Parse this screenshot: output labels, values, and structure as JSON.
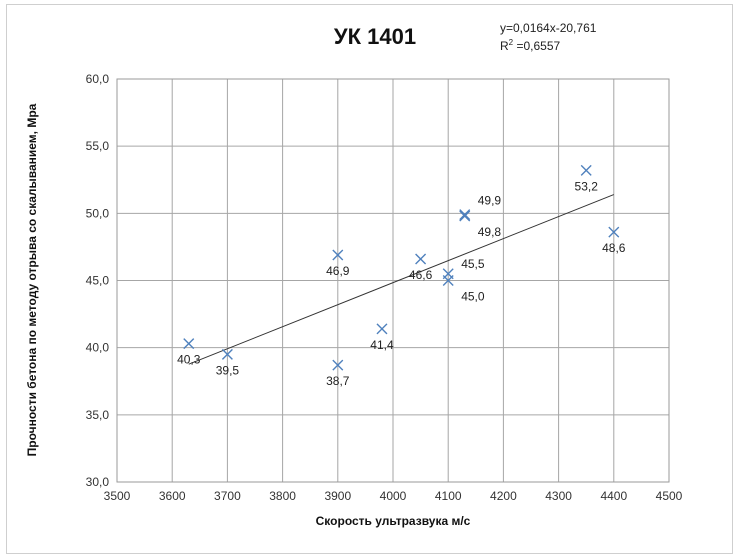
{
  "chart_data": {
    "type": "scatter",
    "title": "УК 1401",
    "equation": "y=0,0164x-20,761",
    "r2_prefix": "R",
    "r2_sup": "2",
    "r2_value": " =0,6557",
    "xlabel": "Скорость ультразвука м/с",
    "ylabel": "Прочности бетона по методу отрыва со скалыванием, Мра",
    "xlim": [
      3500,
      4500
    ],
    "ylim": [
      30,
      60
    ],
    "xticks": [
      3500,
      3600,
      3700,
      3800,
      3900,
      4000,
      4100,
      4200,
      4300,
      4400,
      4500
    ],
    "yticks": [
      "30,0",
      "35,0",
      "40,0",
      "45,0",
      "50,0",
      "55,0",
      "60,0"
    ],
    "grid": true,
    "marker": "x",
    "marker_color": "#4f81bd",
    "trendline": {
      "slope": 0.0164,
      "intercept": -20.761,
      "x_range": [
        3630,
        4400
      ],
      "color": "#333333"
    },
    "points": [
      {
        "x": 3630,
        "y": 40.3,
        "label": "40,3",
        "lpos": "below"
      },
      {
        "x": 3700,
        "y": 39.5,
        "label": "39,5",
        "lpos": "below"
      },
      {
        "x": 3900,
        "y": 46.9,
        "label": "46,9",
        "lpos": "below"
      },
      {
        "x": 3900,
        "y": 38.7,
        "label": "38,7",
        "lpos": "below"
      },
      {
        "x": 3980,
        "y": 41.4,
        "label": "41,4",
        "lpos": "below"
      },
      {
        "x": 4050,
        "y": 46.6,
        "label": "46,6",
        "lpos": "below"
      },
      {
        "x": 4100,
        "y": 45.5,
        "label": "45,5",
        "lpos": "right"
      },
      {
        "x": 4100,
        "y": 45.0,
        "label": "45,0",
        "lpos": "belowright"
      },
      {
        "x": 4130,
        "y": 49.9,
        "label": "49,9",
        "lpos": "aboveright"
      },
      {
        "x": 4130,
        "y": 49.8,
        "label": "49,8",
        "lpos": "belowright"
      },
      {
        "x": 4350,
        "y": 53.2,
        "label": "53,2",
        "lpos": "below"
      },
      {
        "x": 4400,
        "y": 48.6,
        "label": "48,6",
        "lpos": "below"
      }
    ]
  }
}
